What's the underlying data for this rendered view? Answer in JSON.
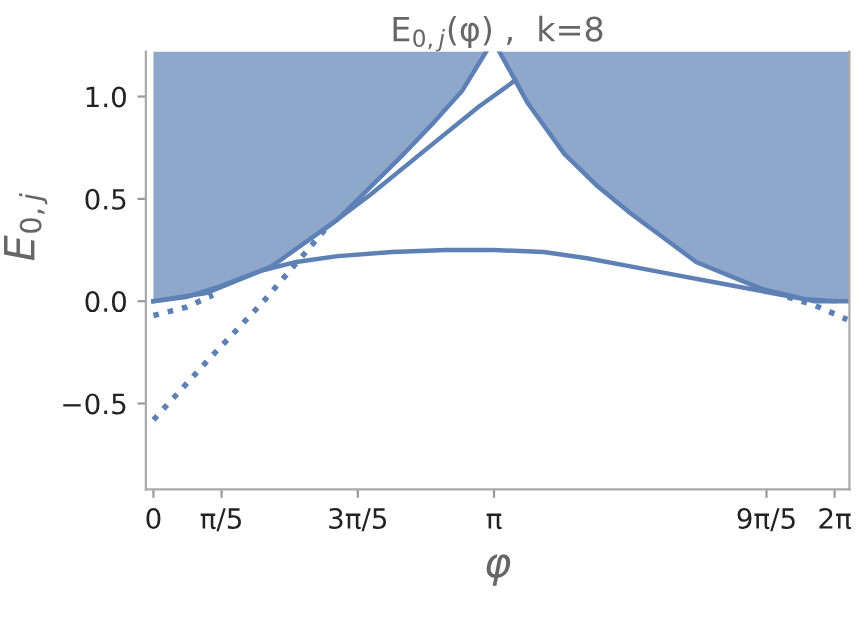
{
  "chart_data": {
    "type": "line",
    "title": "E$_{0,j}$(φ) ,  k=8",
    "xlabel": "φ",
    "ylabel": "E$_{0,j}$",
    "xlim": [
      -0.07,
      6.42
    ],
    "ylim": [
      -0.92,
      1.22
    ],
    "xticks": [
      {
        "value": 0,
        "label": "0"
      },
      {
        "value": 0.6283,
        "label": "π/5"
      },
      {
        "value": 1.885,
        "label": "3π/5"
      },
      {
        "value": 3.1416,
        "label": "π"
      },
      {
        "value": 5.655,
        "label": "9π/5"
      },
      {
        "value": 6.2832,
        "label": "2π"
      }
    ],
    "yticks": [
      {
        "value": -0.5,
        "label": "−0.5"
      },
      {
        "value": 0,
        "label": "0.0"
      },
      {
        "value": 0.5,
        "label": "0.5"
      },
      {
        "value": 1,
        "label": "1.0"
      }
    ],
    "grid": false,
    "legend": false,
    "series": [
      {
        "color": "#5e81b5",
        "line_style": "solid",
        "x": [
          0,
          0.49,
          1.09,
          1.7,
          2.31,
          2.58,
          2.85,
          3.07
        ],
        "values": [
          0,
          0.04,
          0.17,
          0.4,
          0.72,
          0.87,
          1.03,
          1.22
        ],
        "lower": [
          0,
          0.04,
          0.17,
          0.4,
          0.72,
          0.87,
          1.03,
          1.22
        ],
        "upper": [
          1.22,
          1.22,
          1.22,
          1.22,
          1.22,
          1.22,
          1.22,
          1.22
        ]
      },
      {
        "color": "#5e81b5",
        "line_style": "solid",
        "x": [
          3.19,
          3.45,
          3.79,
          4.1,
          4.4,
          5.01,
          5.61,
          6.09,
          6.28,
          6.42
        ],
        "values": [
          1.22,
          0.97,
          0.72,
          0.56,
          0.43,
          0.19,
          0.06,
          0.0,
          0.0,
          0.0
        ],
        "lower": [
          1.22,
          0.97,
          0.72,
          0.56,
          0.43,
          0.19,
          0.06,
          0.0,
          0.0,
          0.0
        ],
        "upper": [
          1.22,
          1.22,
          1.22,
          1.22,
          1.22,
          1.22,
          1.22,
          1.22,
          1.22,
          1.22
        ]
      },
      {
        "color": "#5e81b5",
        "line_style": "solid",
        "x": [
          0,
          0.3,
          0.6,
          1.0,
          1.3,
          1.7,
          2.2,
          2.7,
          3.14,
          3.6,
          4.0,
          4.4,
          4.8,
          5.3,
          5.8,
          6.0,
          6.28
        ],
        "values": [
          0,
          0.02,
          0.07,
          0.15,
          0.19,
          0.22,
          0.24,
          0.25,
          0.25,
          0.24,
          0.21,
          0.17,
          0.13,
          0.08,
          0.03,
          0.01,
          0
        ]
      },
      {
        "color": "#5e81b5",
        "line_style": "solid",
        "x": [
          1.6,
          2.0,
          2.58,
          3.0,
          3.34
        ],
        "values": [
          0.36,
          0.52,
          0.77,
          0.95,
          1.08
        ]
      },
      {
        "color": "#5e81b5",
        "line_style": "dotted",
        "x": [
          0,
          0.5,
          1.0,
          1.6
        ],
        "values": [
          -0.58,
          -0.29,
          -0.01,
          0.36
        ]
      },
      {
        "color": "#5e81b5",
        "line_style": "dotted",
        "x": [
          0,
          0.3,
          0.55
        ],
        "values": [
          -0.07,
          -0.03,
          0.03
        ]
      },
      {
        "color": "#5e81b5",
        "line_style": "dotted",
        "x": [
          5.85,
          6.1,
          6.4
        ],
        "values": [
          0.02,
          -0.02,
          -0.09
        ]
      }
    ]
  }
}
